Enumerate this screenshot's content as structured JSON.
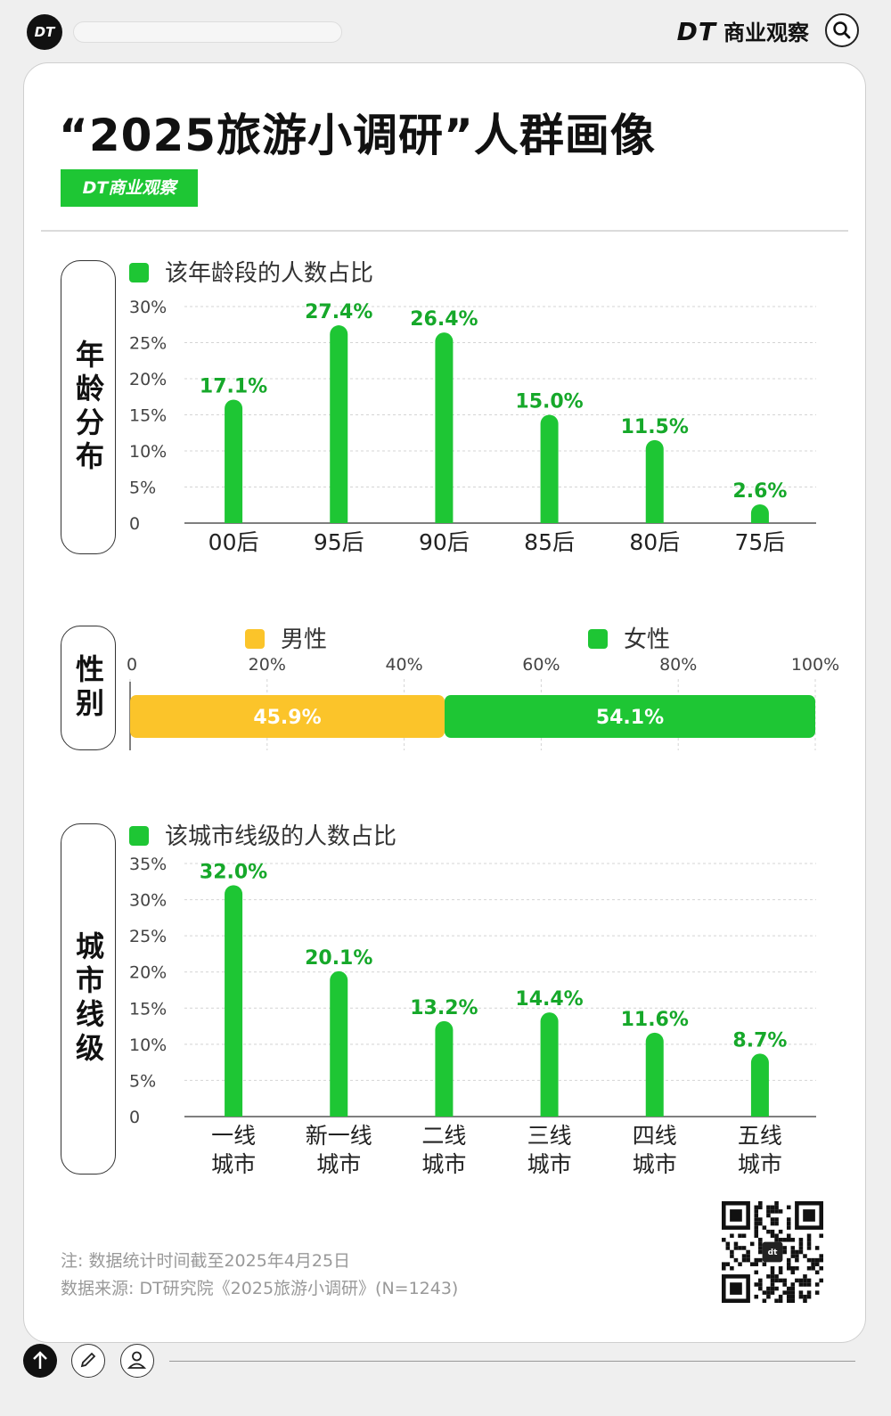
{
  "topbar": {
    "logo_text": "DT",
    "brand_dt": "DT",
    "brand_name": "商业观察"
  },
  "title": "“2025旅游小调研”人群画像",
  "badge": "DT商业观察",
  "colors": {
    "green": "#1ec634",
    "yellow": "#fbc42a",
    "label_green": "#16a82a"
  },
  "chart_data": [
    {
      "type": "bar",
      "section_label": "年龄分布",
      "legend": "该年龄段的人数占比",
      "categories": [
        "00后",
        "95后",
        "90后",
        "85后",
        "80后",
        "75后"
      ],
      "values": [
        17.1,
        27.4,
        26.4,
        15.0,
        11.5,
        2.6
      ],
      "data_labels": [
        "17.1%",
        "27.4%",
        "26.4%",
        "15.0%",
        "11.5%",
        "2.6%"
      ],
      "ylim": [
        0,
        30
      ],
      "yticks": [
        "0",
        "5%",
        "10%",
        "15%",
        "20%",
        "25%",
        "30%"
      ],
      "grid": true
    },
    {
      "type": "bar",
      "orientation": "horizontal-stacked",
      "section_label": "性别",
      "series": [
        {
          "name": "男性",
          "value": 45.9,
          "label": "45.9%"
        },
        {
          "name": "女性",
          "value": 54.1,
          "label": "54.1%"
        }
      ],
      "xlim": [
        0,
        100
      ],
      "xticks": [
        "0",
        "20%",
        "40%",
        "60%",
        "80%",
        "100%"
      ],
      "legend_position": "top"
    },
    {
      "type": "bar",
      "section_label": "城市线级",
      "legend": "该城市线级的人数占比",
      "categories": [
        [
          "一线",
          "城市"
        ],
        [
          "新一线",
          "城市"
        ],
        [
          "二线",
          "城市"
        ],
        [
          "三线",
          "城市"
        ],
        [
          "四线",
          "城市"
        ],
        [
          "五线",
          "城市"
        ]
      ],
      "values": [
        32.0,
        20.1,
        13.2,
        14.4,
        11.6,
        8.7
      ],
      "data_labels": [
        "32.0%",
        "20.1%",
        "13.2%",
        "14.4%",
        "11.6%",
        "8.7%"
      ],
      "ylim": [
        0,
        35
      ],
      "yticks": [
        "0",
        "5%",
        "10%",
        "15%",
        "20%",
        "25%",
        "30%",
        "35%"
      ],
      "grid": true
    }
  ],
  "notes": {
    "note": "注: 数据统计时间截至2025年4月25日",
    "source": "数据来源: DT研究院《2025旅游小调研》(N=1243)"
  },
  "qr_label": "dt"
}
